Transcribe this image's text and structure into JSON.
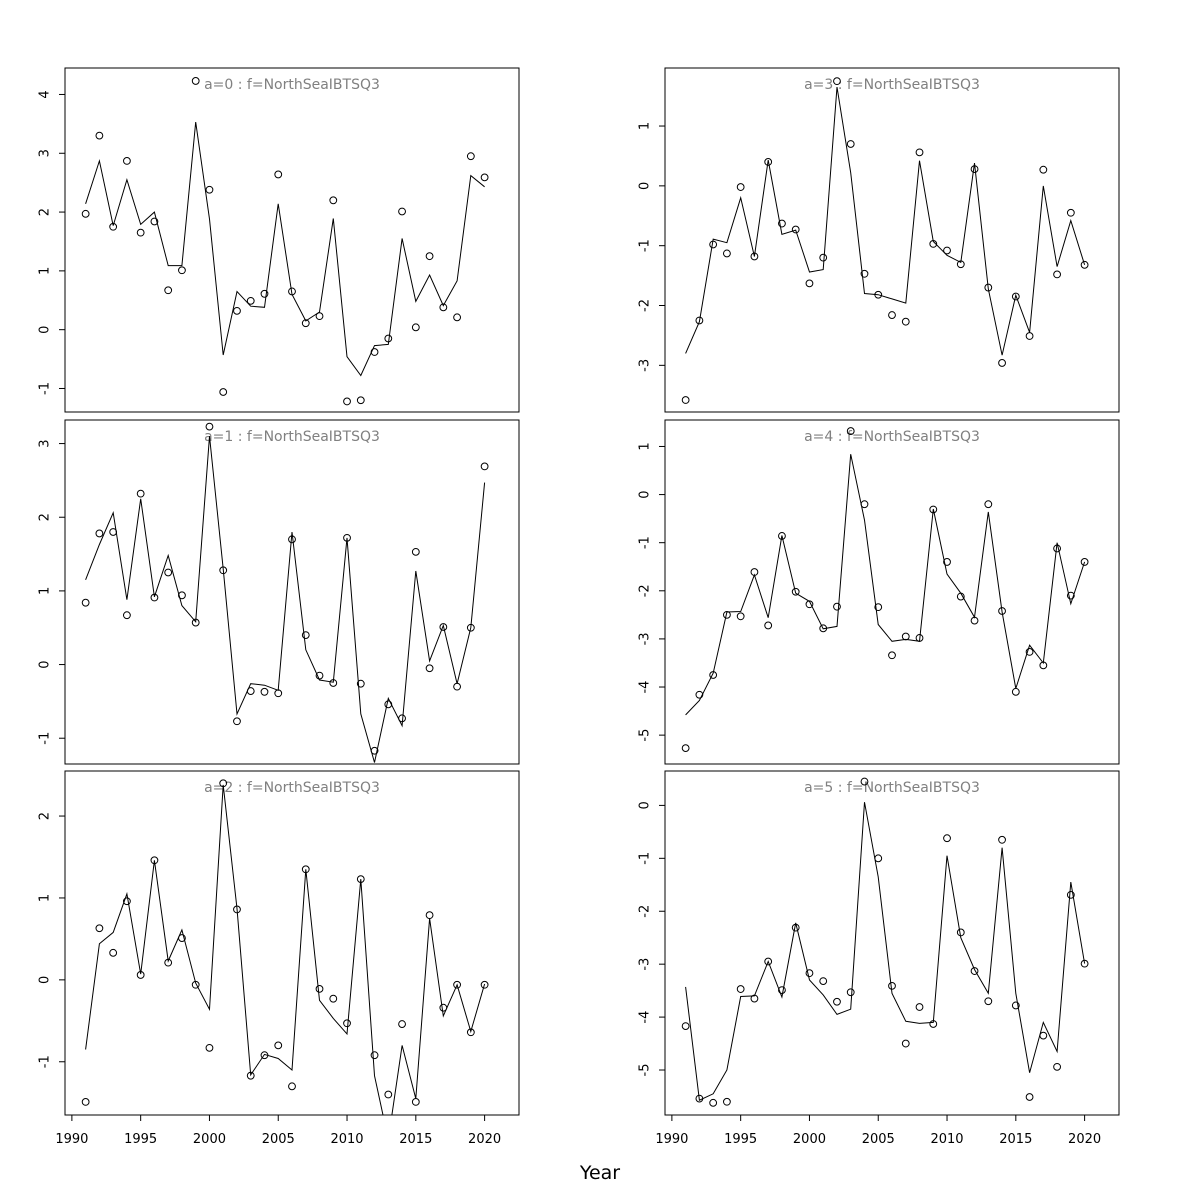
{
  "xlabel": "Year",
  "colors": {
    "points": "#000000",
    "line": "#000000",
    "title": "#808080",
    "frame": "#000000"
  },
  "x_ticks": [
    1990,
    1995,
    2000,
    2005,
    2010,
    2015,
    2020
  ],
  "chart_data": [
    {
      "type": "scatter",
      "title": "a=0  :  f=NorthSeaIBTSQ3",
      "xlim": [
        1989.5,
        2022.5
      ],
      "ylim": [
        -1.4,
        4.45
      ],
      "y_ticks": [
        -1,
        0,
        1,
        2,
        3,
        4
      ],
      "x": [
        1991,
        1992,
        1993,
        1994,
        1995,
        1996,
        1997,
        1998,
        1999,
        2000,
        2001,
        2002,
        2003,
        2004,
        2005,
        2006,
        2007,
        2008,
        2009,
        2010,
        2011,
        2012,
        2013,
        2014,
        2015,
        2016,
        2017,
        2018,
        2019,
        2020
      ],
      "observed": [
        1.97,
        3.3,
        1.75,
        2.87,
        1.65,
        1.84,
        0.67,
        1.01,
        4.23,
        2.38,
        -1.06,
        0.32,
        0.49,
        0.61,
        2.64,
        0.65,
        0.11,
        0.23,
        2.2,
        -1.22,
        -1.2,
        -0.38,
        -0.15,
        2.01,
        0.04,
        1.25,
        0.38,
        0.21,
        2.95,
        2.59
      ],
      "fitted": [
        2.14,
        2.87,
        1.77,
        2.55,
        1.79,
        2.0,
        1.09,
        1.09,
        3.53,
        1.88,
        -0.43,
        0.65,
        0.4,
        0.38,
        2.14,
        0.6,
        0.15,
        0.3,
        1.89,
        -0.46,
        -0.78,
        -0.27,
        -0.25,
        1.55,
        0.48,
        0.93,
        0.41,
        0.83,
        2.62,
        2.43
      ]
    },
    {
      "type": "scatter",
      "title": "a=3  :  f=NorthSeaIBTSQ3",
      "xlim": [
        1989.5,
        2022.5
      ],
      "ylim": [
        -3.78,
        1.97
      ],
      "y_ticks": [
        -3,
        -2,
        -1,
        0,
        1
      ],
      "x": [
        1991,
        1992,
        1993,
        1994,
        1995,
        1996,
        1997,
        1998,
        1999,
        2000,
        2001,
        2002,
        2003,
        2004,
        2005,
        2006,
        2007,
        2008,
        2009,
        2010,
        2011,
        2012,
        2013,
        2014,
        2015,
        2016,
        2017,
        2018,
        2019,
        2020
      ],
      "observed": [
        -3.58,
        -2.25,
        -0.98,
        -1.13,
        -0.02,
        -1.18,
        0.4,
        -0.63,
        -0.73,
        -1.63,
        -1.2,
        1.75,
        0.7,
        -1.47,
        -1.82,
        -2.16,
        -2.27,
        0.56,
        -0.97,
        -1.08,
        -1.31,
        0.28,
        -1.7,
        -2.96,
        -1.85,
        -2.51,
        0.27,
        -1.48,
        -0.45,
        -1.32
      ],
      "fitted": [
        -2.8,
        -2.27,
        -0.89,
        -0.95,
        -0.2,
        -1.18,
        0.43,
        -0.81,
        -0.74,
        -1.44,
        -1.4,
        1.65,
        0.22,
        -1.8,
        -1.82,
        -1.89,
        -1.96,
        0.42,
        -0.93,
        -1.16,
        -1.28,
        0.38,
        -1.72,
        -2.83,
        -1.83,
        -2.45,
        0.0,
        -1.35,
        -0.58,
        -1.32
      ]
    },
    {
      "type": "scatter",
      "title": "a=1  :  f=NorthSeaIBTSQ3",
      "xlim": [
        1989.5,
        2022.5
      ],
      "ylim": [
        -1.35,
        3.32
      ],
      "y_ticks": [
        -1,
        0,
        1,
        2,
        3
      ],
      "x": [
        1991,
        1992,
        1993,
        1994,
        1995,
        1996,
        1997,
        1998,
        1999,
        2000,
        2001,
        2002,
        2003,
        2004,
        2005,
        2006,
        2007,
        2008,
        2009,
        2010,
        2011,
        2012,
        2013,
        2014,
        2015,
        2016,
        2017,
        2018,
        2019,
        2020
      ],
      "observed": [
        0.84,
        1.78,
        1.8,
        0.67,
        2.32,
        0.91,
        1.25,
        0.94,
        0.57,
        3.23,
        1.28,
        -0.77,
        -0.36,
        -0.37,
        -0.39,
        1.7,
        0.4,
        -0.15,
        -0.25,
        1.72,
        -0.26,
        -1.17,
        -0.54,
        -0.73,
        1.53,
        -0.05,
        0.51,
        -0.3,
        0.5,
        2.69
      ],
      "fitted": [
        1.15,
        1.63,
        2.06,
        0.88,
        2.25,
        0.92,
        1.48,
        0.8,
        0.58,
        3.1,
        1.3,
        -0.67,
        -0.26,
        -0.28,
        -0.35,
        1.8,
        0.2,
        -0.21,
        -0.24,
        1.72,
        -0.67,
        -1.33,
        -0.46,
        -0.83,
        1.27,
        0.05,
        0.53,
        -0.26,
        0.5,
        2.47
      ]
    },
    {
      "type": "scatter",
      "title": "a=4  :  f=NorthSeaIBTSQ3",
      "xlim": [
        1989.5,
        2022.5
      ],
      "ylim": [
        -5.6,
        1.55
      ],
      "y_ticks": [
        -5,
        -4,
        -3,
        -2,
        -1,
        0,
        1
      ],
      "x": [
        1991,
        1992,
        1993,
        1994,
        1995,
        1996,
        1997,
        1998,
        1999,
        2000,
        2001,
        2002,
        2003,
        2004,
        2005,
        2006,
        2007,
        2008,
        2009,
        2010,
        2011,
        2012,
        2013,
        2014,
        2015,
        2016,
        2017,
        2018,
        2019,
        2020
      ],
      "observed": [
        -5.27,
        -4.16,
        -3.75,
        -2.5,
        -2.53,
        -1.61,
        -2.72,
        -0.86,
        -2.02,
        -2.28,
        -2.78,
        -2.33,
        1.32,
        -0.2,
        -2.34,
        -3.34,
        -2.95,
        -2.98,
        -0.31,
        -1.4,
        -2.12,
        -2.62,
        -0.2,
        -2.42,
        -4.1,
        -3.27,
        -3.55,
        -1.12,
        -2.1,
        -1.4
      ],
      "fitted": [
        -4.58,
        -4.28,
        -3.71,
        -2.44,
        -2.43,
        -1.67,
        -2.56,
        -0.85,
        -2.05,
        -2.22,
        -2.79,
        -2.74,
        0.84,
        -0.53,
        -2.7,
        -3.05,
        -3.01,
        -3.05,
        -0.3,
        -1.65,
        -2.05,
        -2.55,
        -0.36,
        -2.44,
        -4.03,
        -3.13,
        -3.5,
        -1.0,
        -2.27,
        -1.4
      ]
    },
    {
      "type": "scatter",
      "title": "a=2  :  f=NorthSeaIBTSQ3",
      "xlim": [
        1989.5,
        2022.5
      ],
      "ylim": [
        -1.65,
        2.55
      ],
      "y_ticks": [
        -1,
        0,
        1,
        2
      ],
      "x": [
        1991,
        1992,
        1993,
        1994,
        1995,
        1996,
        1997,
        1998,
        1999,
        2000,
        2001,
        2002,
        2003,
        2004,
        2005,
        2006,
        2007,
        2008,
        2009,
        2010,
        2011,
        2012,
        2013,
        2014,
        2015,
        2016,
        2017,
        2018,
        2019,
        2020
      ],
      "observed": [
        -1.49,
        0.63,
        0.33,
        0.96,
        0.06,
        1.46,
        0.21,
        0.51,
        -0.06,
        -0.83,
        2.4,
        0.86,
        -1.17,
        -0.92,
        -0.8,
        -1.3,
        1.35,
        -0.11,
        -0.23,
        -0.53,
        1.23,
        -0.92,
        -1.4,
        -0.54,
        -1.49,
        0.79,
        -0.34,
        -0.06,
        -0.64,
        -0.06
      ],
      "fitted": [
        -0.85,
        0.44,
        0.58,
        1.05,
        0.07,
        1.46,
        0.23,
        0.61,
        -0.04,
        -0.36,
        2.38,
        0.87,
        -1.16,
        -0.91,
        -0.96,
        -1.1,
        1.35,
        -0.25,
        -0.47,
        -0.66,
        1.23,
        -1.17,
        -1.95,
        -0.8,
        -1.45,
        0.75,
        -0.44,
        -0.06,
        -0.63,
        -0.05
      ]
    },
    {
      "type": "scatter",
      "title": "a=5  :  f=NorthSeaIBTSQ3",
      "xlim": [
        1989.5,
        2022.5
      ],
      "ylim": [
        -5.85,
        0.65
      ],
      "y_ticks": [
        -5,
        -4,
        -3,
        -2,
        -1,
        0
      ],
      "x": [
        1991,
        1992,
        1993,
        1994,
        1995,
        1996,
        1997,
        1998,
        1999,
        2000,
        2001,
        2002,
        2003,
        2004,
        2005,
        2006,
        2007,
        2008,
        2009,
        2010,
        2011,
        2012,
        2013,
        2014,
        2015,
        2016,
        2017,
        2018,
        2019,
        2020
      ],
      "observed": [
        -4.17,
        -5.54,
        -5.62,
        -5.6,
        -3.47,
        -3.65,
        -2.95,
        -3.49,
        -2.31,
        -3.17,
        -3.32,
        -3.71,
        -3.53,
        0.45,
        -1.0,
        -3.41,
        -4.5,
        -3.81,
        -4.13,
        -0.62,
        -2.4,
        -3.13,
        -3.7,
        -0.65,
        -3.78,
        -5.51,
        -4.35,
        -4.94,
        -1.69,
        -2.99
      ],
      "fitted": [
        -3.43,
        -5.57,
        -5.45,
        -5.0,
        -3.61,
        -3.6,
        -2.95,
        -3.62,
        -2.22,
        -3.3,
        -3.58,
        -3.95,
        -3.85,
        0.06,
        -1.35,
        -3.55,
        -4.08,
        -4.12,
        -4.1,
        -0.95,
        -2.5,
        -3.1,
        -3.55,
        -0.8,
        -3.55,
        -5.05,
        -4.1,
        -4.65,
        -1.45,
        -2.99
      ]
    }
  ]
}
